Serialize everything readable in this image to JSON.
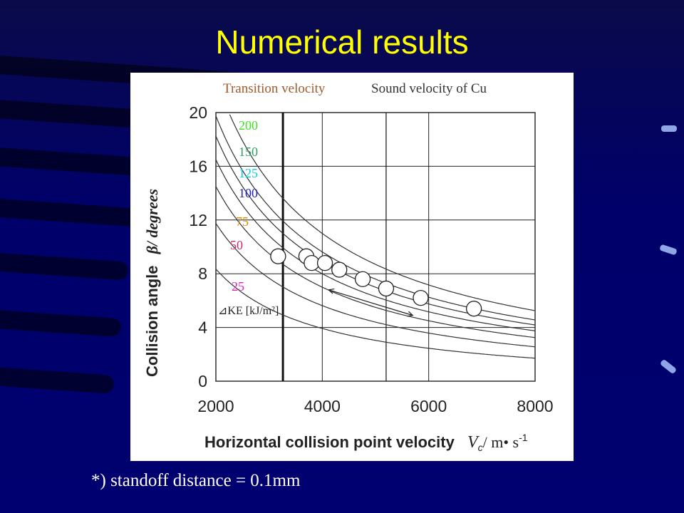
{
  "slide": {
    "title": "Numerical results",
    "footnote": "*) standoff distance = 0.1mm"
  },
  "chart_data": {
    "type": "scatter",
    "xlabel": "Horizontal collision point velocity",
    "ylabel": "Collision angle",
    "xlabel_unit": "V",
    "xlabel_unit_sub": "c",
    "xlabel_unit_tail": "/ m• s",
    "xlabel_unit_sup": "-1",
    "ylabel_symbol": "β/ degrees",
    "xlim": [
      2000,
      8000
    ],
    "ylim": [
      0,
      20
    ],
    "xticks": [
      2000,
      4000,
      6000,
      8000
    ],
    "yticks": [
      0,
      4,
      8,
      12,
      16,
      20
    ],
    "grid": true,
    "vertical_lines": [
      {
        "label": "Transition velocity",
        "x": 3260,
        "color": "#a05a2c"
      },
      {
        "label": "Sound velocity of Cu",
        "x": 5200,
        "color": "#333333"
      }
    ],
    "ke_label": "⊿KE [kJ/m²]",
    "ke_curves": [
      {
        "label": "25",
        "k": 17700,
        "color": "#e020c0"
      },
      {
        "label": "50",
        "k": 24500,
        "color": "#c03070"
      },
      {
        "label": "75",
        "k": 30000,
        "color": "#e08a00"
      },
      {
        "label": "100",
        "k": 34000,
        "color": "#2020c0"
      },
      {
        "label": "125",
        "k": 37500,
        "color": "#00d0e0"
      },
      {
        "label": "150",
        "k": 40500,
        "color": "#30a060"
      },
      {
        "label": "200",
        "k": 46000,
        "color": "#40e020"
      }
    ],
    "points": [
      {
        "x": 3170,
        "y": 9.3
      },
      {
        "x": 3700,
        "y": 9.3
      },
      {
        "x": 3800,
        "y": 8.8
      },
      {
        "x": 4050,
        "y": 8.8
      },
      {
        "x": 4320,
        "y": 8.3
      },
      {
        "x": 4760,
        "y": 7.6
      },
      {
        "x": 5200,
        "y": 6.9
      },
      {
        "x": 5850,
        "y": 6.2
      },
      {
        "x": 6850,
        "y": 5.4
      }
    ],
    "arrow": {
      "x1": 4120,
      "y1": 6.8,
      "x2": 5700,
      "y2": 4.9
    }
  }
}
